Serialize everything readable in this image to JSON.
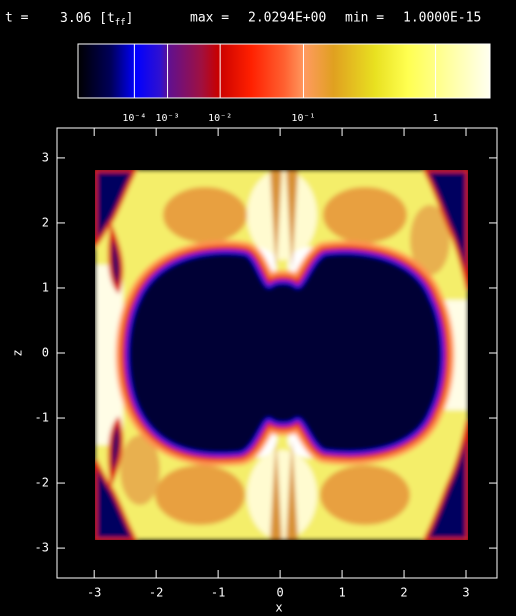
{
  "header": {
    "t_label": "t =",
    "t_value": "3.06",
    "t_unit_open": "[t",
    "t_unit_sub": "ff",
    "t_unit_close": "]",
    "max_label": "max =",
    "max_value": "2.0294E+00",
    "min_label": "min =",
    "min_value": "1.0000E-15"
  },
  "chart_data": {
    "type": "image",
    "x_label": "x",
    "y_label": "z",
    "xlim": [
      -3.6,
      3.5
    ],
    "ylim": [
      -3.46,
      3.46
    ],
    "xticks": [
      -3,
      -2,
      -1,
      0,
      1,
      2,
      3
    ],
    "yticks": [
      -3,
      -2,
      -1,
      0,
      1,
      2,
      3
    ],
    "colorbar": {
      "scale": "power",
      "exponent": 0.2,
      "lim": [
        1e-15,
        2.0294
      ],
      "ticks": [
        {
          "value": 0.0001,
          "label": "10⁻⁴"
        },
        {
          "value": 0.001,
          "label": "10⁻³"
        },
        {
          "value": 0.01,
          "label": "10⁻²"
        },
        {
          "value": 0.1,
          "label": "10⁻¹"
        },
        1
      ]
    }
  }
}
